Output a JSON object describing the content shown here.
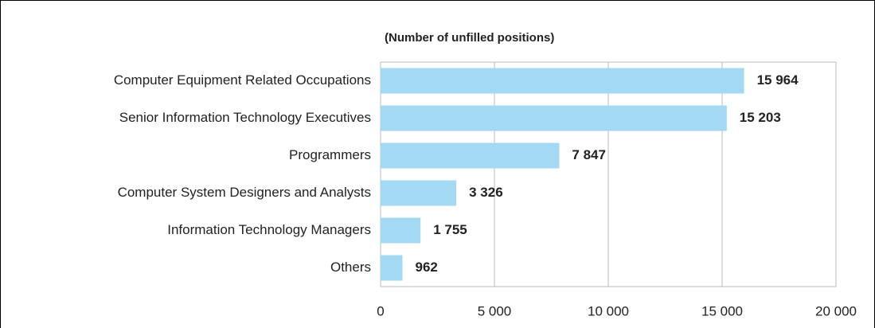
{
  "chart_data": {
    "type": "bar",
    "orientation": "horizontal",
    "subtitle": "(Number of unfilled positions)",
    "categories": [
      "Computer Equipment Related Occupations",
      "Senior Information Technology Executives",
      "Programmers",
      "Computer System Designers and Analysts",
      "Information Technology Managers",
      "Others"
    ],
    "values": [
      15964,
      15203,
      7847,
      3326,
      1755,
      962
    ],
    "value_labels": [
      "15 964",
      "15 203",
      "7 847",
      "3 326",
      "1 755",
      "962"
    ],
    "color": "#a3d9f2",
    "xlim": [
      0,
      20000
    ],
    "xticks": [
      0,
      {
        "value": 5000,
        "label": "5 000"
      },
      {
        "value": 10000,
        "label": "10 000"
      },
      {
        "value": 15000,
        "label": "15 000"
      },
      {
        "value": 20000,
        "label": "20 000"
      }
    ],
    "grid": true
  }
}
